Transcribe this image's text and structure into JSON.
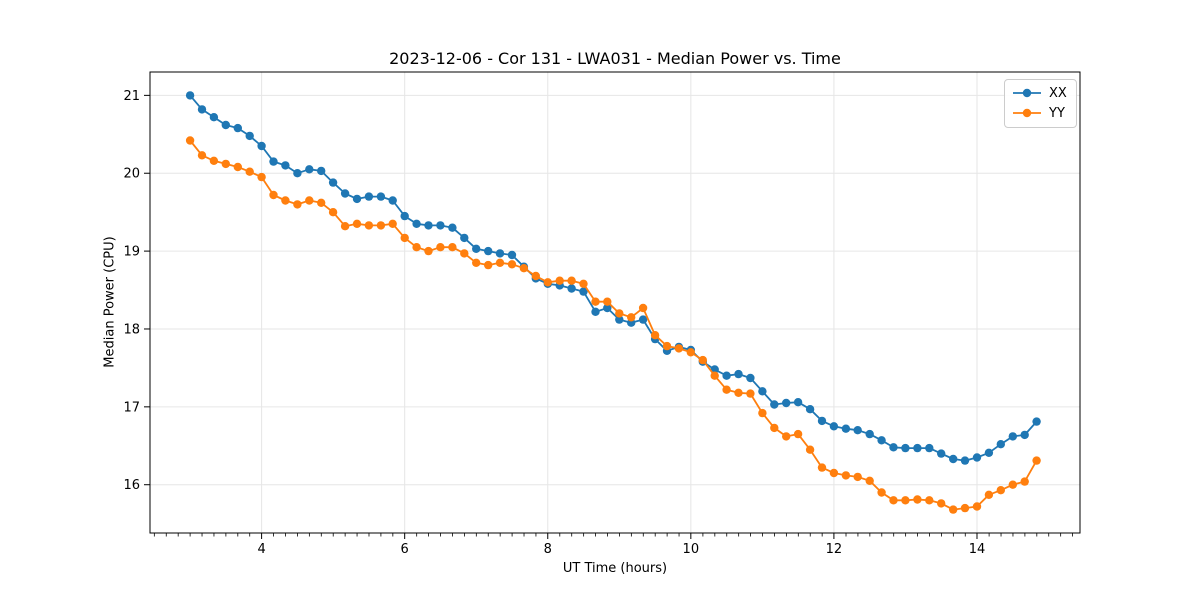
{
  "chart_data": {
    "type": "line",
    "title": "2023-12-06 - Cor 131 - LWA031 - Median Power vs. Time",
    "xlabel": "UT Time (hours)",
    "ylabel": "Median Power (CPU)",
    "xlim": [
      2.44,
      15.44
    ],
    "ylim": [
      15.38,
      21.3
    ],
    "xticks": [
      4,
      6,
      8,
      10,
      12,
      14
    ],
    "yticks": [
      16,
      17,
      18,
      19,
      20,
      21
    ],
    "x_minor_step": 0.1667,
    "grid": true,
    "legend_position": "upper right",
    "background_color": "#ffffff",
    "grid_color": "#e6e6e6",
    "x": [
      3.0,
      3.167,
      3.333,
      3.5,
      3.667,
      3.833,
      4.0,
      4.167,
      4.333,
      4.5,
      4.667,
      4.833,
      5.0,
      5.167,
      5.333,
      5.5,
      5.667,
      5.833,
      6.0,
      6.167,
      6.333,
      6.5,
      6.667,
      6.833,
      7.0,
      7.167,
      7.333,
      7.5,
      7.667,
      7.833,
      8.0,
      8.167,
      8.333,
      8.5,
      8.667,
      8.833,
      9.0,
      9.167,
      9.333,
      9.5,
      9.667,
      9.833,
      10.0,
      10.167,
      10.333,
      10.5,
      10.667,
      10.833,
      11.0,
      11.167,
      11.333,
      11.5,
      11.667,
      11.833,
      12.0,
      12.167,
      12.333,
      12.5,
      12.667,
      12.833,
      13.0,
      13.167,
      13.333,
      13.5,
      13.667,
      13.833,
      14.0,
      14.167,
      14.333,
      14.5,
      14.667,
      14.833
    ],
    "series": [
      {
        "name": "XX",
        "color": "#1f77b4",
        "values": [
          21.0,
          20.82,
          20.72,
          20.62,
          20.58,
          20.48,
          20.35,
          20.15,
          20.1,
          20.0,
          20.05,
          20.03,
          19.88,
          19.74,
          19.67,
          19.7,
          19.7,
          19.65,
          19.45,
          19.35,
          19.33,
          19.33,
          19.3,
          19.17,
          19.03,
          19.0,
          18.97,
          18.95,
          18.8,
          18.65,
          18.58,
          18.56,
          18.52,
          18.48,
          18.22,
          18.27,
          18.12,
          18.08,
          18.12,
          17.87,
          17.72,
          17.77,
          17.73,
          17.58,
          17.48,
          17.4,
          17.42,
          17.37,
          17.2,
          17.03,
          17.05,
          17.06,
          16.97,
          16.82,
          16.75,
          16.72,
          16.7,
          16.65,
          16.57,
          16.48,
          16.47,
          16.47,
          16.47,
          16.4,
          16.33,
          16.31,
          16.35,
          16.41,
          16.52,
          16.62,
          16.64,
          16.81
        ]
      },
      {
        "name": "YY",
        "color": "#ff7f0e",
        "values": [
          20.42,
          20.23,
          20.16,
          20.12,
          20.08,
          20.02,
          19.95,
          19.72,
          19.65,
          19.6,
          19.65,
          19.62,
          19.5,
          19.32,
          19.35,
          19.33,
          19.33,
          19.35,
          19.17,
          19.05,
          19.0,
          19.05,
          19.05,
          18.97,
          18.85,
          18.82,
          18.85,
          18.83,
          18.78,
          18.68,
          18.6,
          18.62,
          18.62,
          18.58,
          18.35,
          18.35,
          18.2,
          18.15,
          18.27,
          17.92,
          17.78,
          17.75,
          17.7,
          17.6,
          17.4,
          17.22,
          17.18,
          17.17,
          16.92,
          16.73,
          16.62,
          16.65,
          16.45,
          16.22,
          16.15,
          16.12,
          16.1,
          16.05,
          15.9,
          15.8,
          15.8,
          15.81,
          15.8,
          15.76,
          15.68,
          15.7,
          15.72,
          15.87,
          15.93,
          16.0,
          16.04,
          16.31
        ]
      }
    ]
  }
}
